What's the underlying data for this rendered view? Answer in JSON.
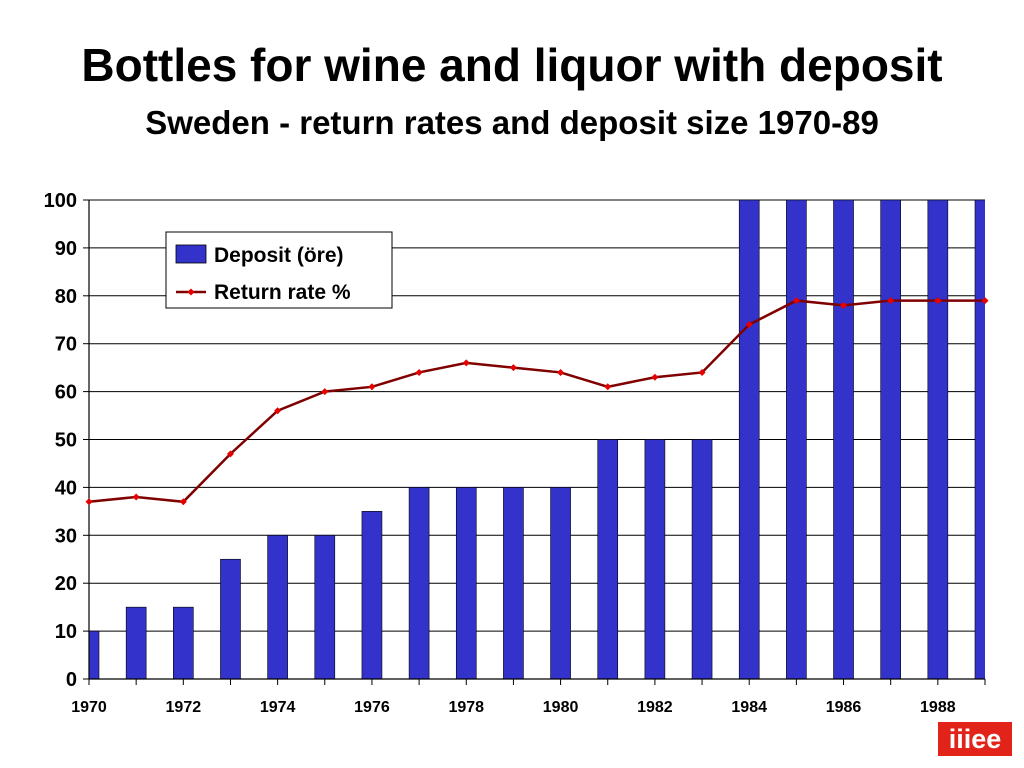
{
  "title": "Bottles for wine and liquor with deposit",
  "subtitle": "Sweden - return rates and deposit size 1970-89",
  "logo_text": "iiiee",
  "colors": {
    "bar": "#3333cc",
    "bar_stroke": "#000000",
    "line": "#800000",
    "marker": "#e60000"
  },
  "chart_data": {
    "type": "bar",
    "title": "Bottles for wine and liquor with deposit",
    "subtitle": "Sweden - return rates and deposit size 1970-89",
    "x": [
      1970,
      1971,
      1972,
      1973,
      1974,
      1975,
      1976,
      1977,
      1978,
      1979,
      1980,
      1981,
      1982,
      1983,
      1984,
      1985,
      1986,
      1987,
      1988,
      1989
    ],
    "xticks": [
      "1970",
      "1972",
      "1974",
      "1976",
      "1978",
      "1980",
      "1982",
      "1984",
      "1986",
      "1988"
    ],
    "yticks": [
      "0",
      "10",
      "20",
      "30",
      "40",
      "50",
      "60",
      "70",
      "80",
      "90",
      "100"
    ],
    "ylim": [
      0,
      100
    ],
    "grid": "horizontal",
    "legend_placement": "top-left",
    "series": [
      {
        "name": "Deposit (öre)",
        "type": "bar",
        "values": [
          10,
          15,
          15,
          25,
          30,
          30,
          35,
          40,
          40,
          40,
          40,
          50,
          50,
          50,
          100,
          100,
          100,
          100,
          100,
          100
        ]
      },
      {
        "name": "Return rate %",
        "type": "line",
        "values": [
          37,
          38,
          37,
          47,
          56,
          60,
          61,
          64,
          66,
          65,
          64,
          61,
          63,
          64,
          74,
          79,
          78,
          79,
          79,
          79
        ]
      }
    ]
  }
}
